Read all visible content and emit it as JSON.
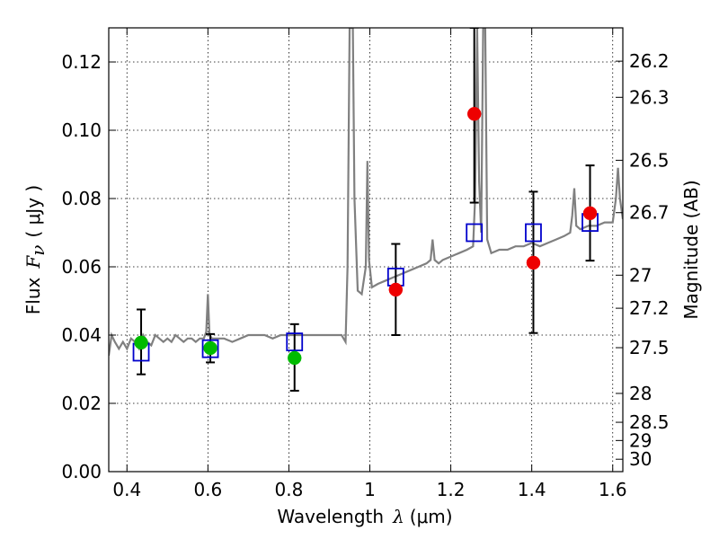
{
  "chart_data": {
    "type": "scatter",
    "title": "",
    "xlabel": {
      "prefix": "Wavelength",
      "symbol": "λ",
      "unit": "(μm)"
    },
    "ylabel": {
      "prefix": "Flux",
      "symbol": "F",
      "subscript": "ν",
      "unit": "( μJy )"
    },
    "y2label": "Magnitude (AB)",
    "xlim": [
      0.355,
      1.625
    ],
    "ylim": [
      0.0,
      0.13
    ],
    "grid": true,
    "x_ticks": [
      {
        "value": 0.4,
        "label": "0.4"
      },
      {
        "value": 0.6,
        "label": "0.6"
      },
      {
        "value": 0.8,
        "label": "0.8"
      },
      {
        "value": 1.0,
        "label": "1"
      },
      {
        "value": 1.2,
        "label": "1.2"
      },
      {
        "value": 1.4,
        "label": "1.4"
      },
      {
        "value": 1.6,
        "label": "1.6"
      }
    ],
    "y_ticks": [
      {
        "value": 0.0,
        "label": "0.00"
      },
      {
        "value": 0.02,
        "label": "0.02"
      },
      {
        "value": 0.04,
        "label": "0.04"
      },
      {
        "value": 0.06,
        "label": "0.06"
      },
      {
        "value": 0.08,
        "label": "0.08"
      },
      {
        "value": 0.1,
        "label": "0.10"
      },
      {
        "value": 0.12,
        "label": "0.12"
      }
    ],
    "y2_ticks": [
      {
        "magnitude": 26.2,
        "label": "26.2"
      },
      {
        "magnitude": 26.3,
        "label": "26.3"
      },
      {
        "magnitude": 26.5,
        "label": "26.5"
      },
      {
        "magnitude": 26.7,
        "label": "26.7"
      },
      {
        "magnitude": 27.0,
        "label": "27"
      },
      {
        "magnitude": 27.2,
        "label": "27.2"
      },
      {
        "magnitude": 27.5,
        "label": "27.5"
      },
      {
        "magnitude": 28.0,
        "label": "28"
      },
      {
        "magnitude": 28.5,
        "label": "28.5"
      },
      {
        "magnitude": 29.0,
        "label": "29"
      },
      {
        "magnitude": 30.0,
        "label": "30"
      }
    ],
    "colors": {
      "spectrum": "#808080",
      "model": "#0000cc",
      "optical": "#00bb00",
      "nir": "#ee0000",
      "errorbar": "#000000"
    },
    "spectrum": [
      [
        0.355,
        0.034
      ],
      [
        0.362,
        0.04
      ],
      [
        0.37,
        0.038
      ],
      [
        0.38,
        0.036
      ],
      [
        0.39,
        0.038
      ],
      [
        0.4,
        0.036
      ],
      [
        0.41,
        0.039
      ],
      [
        0.42,
        0.038
      ],
      [
        0.43,
        0.036
      ],
      [
        0.44,
        0.04
      ],
      [
        0.45,
        0.038
      ],
      [
        0.46,
        0.037
      ],
      [
        0.47,
        0.04
      ],
      [
        0.48,
        0.039
      ],
      [
        0.49,
        0.038
      ],
      [
        0.5,
        0.039
      ],
      [
        0.51,
        0.038
      ],
      [
        0.52,
        0.04
      ],
      [
        0.53,
        0.039
      ],
      [
        0.54,
        0.038
      ],
      [
        0.55,
        0.039
      ],
      [
        0.56,
        0.039
      ],
      [
        0.57,
        0.038
      ],
      [
        0.58,
        0.039
      ],
      [
        0.59,
        0.039
      ],
      [
        0.596,
        0.041
      ],
      [
        0.6,
        0.052
      ],
      [
        0.604,
        0.04
      ],
      [
        0.61,
        0.039
      ],
      [
        0.62,
        0.039
      ],
      [
        0.64,
        0.039
      ],
      [
        0.66,
        0.038
      ],
      [
        0.68,
        0.039
      ],
      [
        0.7,
        0.04
      ],
      [
        0.72,
        0.04
      ],
      [
        0.74,
        0.04
      ],
      [
        0.76,
        0.039
      ],
      [
        0.78,
        0.04
      ],
      [
        0.8,
        0.04
      ],
      [
        0.82,
        0.04
      ],
      [
        0.84,
        0.04
      ],
      [
        0.86,
        0.04
      ],
      [
        0.88,
        0.04
      ],
      [
        0.9,
        0.04
      ],
      [
        0.92,
        0.04
      ],
      [
        0.93,
        0.04
      ],
      [
        0.94,
        0.038
      ],
      [
        0.945,
        0.06
      ],
      [
        0.95,
        0.13
      ],
      [
        0.958,
        0.13
      ],
      [
        0.962,
        0.08
      ],
      [
        0.97,
        0.053
      ],
      [
        0.98,
        0.052
      ],
      [
        0.99,
        0.06
      ],
      [
        0.994,
        0.091
      ],
      [
        0.998,
        0.062
      ],
      [
        1.005,
        0.054
      ],
      [
        1.02,
        0.055
      ],
      [
        1.04,
        0.056
      ],
      [
        1.06,
        0.057
      ],
      [
        1.08,
        0.058
      ],
      [
        1.1,
        0.059
      ],
      [
        1.12,
        0.06
      ],
      [
        1.14,
        0.061
      ],
      [
        1.15,
        0.062
      ],
      [
        1.155,
        0.068
      ],
      [
        1.16,
        0.062
      ],
      [
        1.17,
        0.061
      ],
      [
        1.18,
        0.062
      ],
      [
        1.2,
        0.063
      ],
      [
        1.22,
        0.064
      ],
      [
        1.24,
        0.065
      ],
      [
        1.255,
        0.066
      ],
      [
        1.26,
        0.08
      ],
      [
        1.265,
        0.13
      ],
      [
        1.27,
        0.085
      ],
      [
        1.275,
        0.07
      ],
      [
        1.28,
        0.13
      ],
      [
        1.285,
        0.13
      ],
      [
        1.29,
        0.068
      ],
      [
        1.3,
        0.064
      ],
      [
        1.32,
        0.065
      ],
      [
        1.34,
        0.065
      ],
      [
        1.36,
        0.066
      ],
      [
        1.38,
        0.066
      ],
      [
        1.4,
        0.067
      ],
      [
        1.42,
        0.066
      ],
      [
        1.44,
        0.067
      ],
      [
        1.46,
        0.068
      ],
      [
        1.48,
        0.069
      ],
      [
        1.495,
        0.07
      ],
      [
        1.5,
        0.075
      ],
      [
        1.505,
        0.083
      ],
      [
        1.51,
        0.072
      ],
      [
        1.52,
        0.071
      ],
      [
        1.54,
        0.072
      ],
      [
        1.56,
        0.072
      ],
      [
        1.58,
        0.073
      ],
      [
        1.6,
        0.073
      ],
      [
        1.608,
        0.08
      ],
      [
        1.613,
        0.089
      ],
      [
        1.618,
        0.08
      ],
      [
        1.625,
        0.074
      ]
    ],
    "model_points": [
      {
        "x": 0.435,
        "y": 0.035
      },
      {
        "x": 0.606,
        "y": 0.036
      },
      {
        "x": 0.814,
        "y": 0.038
      },
      {
        "x": 1.064,
        "y": 0.057
      },
      {
        "x": 1.258,
        "y": 0.07
      },
      {
        "x": 1.404,
        "y": 0.07
      },
      {
        "x": 1.544,
        "y": 0.073
      }
    ],
    "optical_points": [
      {
        "x": 0.435,
        "y": 0.0378,
        "yerr_low": 0.0285,
        "yerr_high": 0.0475
      },
      {
        "x": 0.606,
        "y": 0.0362,
        "yerr_low": 0.032,
        "yerr_high": 0.0403
      },
      {
        "x": 0.814,
        "y": 0.0333,
        "yerr_low": 0.0237,
        "yerr_high": 0.0432
      }
    ],
    "nir_points": [
      {
        "x": 1.064,
        "y": 0.0533,
        "yerr_low": 0.04,
        "yerr_high": 0.0667
      },
      {
        "x": 1.258,
        "y": 0.1048,
        "yerr_low": 0.0788,
        "yerr_high": 0.13
      },
      {
        "x": 1.404,
        "y": 0.0612,
        "yerr_low": 0.0406,
        "yerr_high": 0.082
      },
      {
        "x": 1.544,
        "y": 0.0757,
        "yerr_low": 0.0618,
        "yerr_high": 0.0897
      }
    ]
  }
}
